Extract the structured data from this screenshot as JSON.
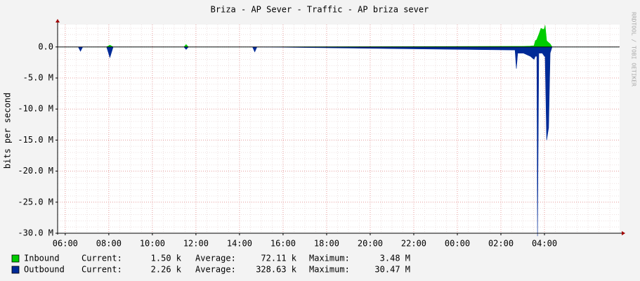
{
  "chart_data": {
    "type": "area",
    "title": "Briza - AP Sever - Traffic - AP briza sever",
    "y_label": "bits per second",
    "watermark": "RRDTOOL / TOBI OETIKER",
    "x": [
      5.7,
      6.6,
      6.7,
      6.8,
      7.9,
      8.05,
      8.2,
      11.45,
      11.55,
      11.65,
      14.6,
      14.7,
      14.8,
      26.65,
      26.71,
      26.77,
      27.03,
      27.35,
      27.52,
      27.58,
      27.65,
      27.68,
      27.74,
      27.84,
      27.9,
      27.94,
      28.0,
      28.03,
      28.1,
      28.19,
      28.26,
      28.35,
      31.4
    ],
    "series": [
      {
        "name": "Inbound",
        "color": "#00cc00",
        "values": [
          0,
          0,
          0,
          0,
          0,
          300000,
          0,
          0,
          400000,
          0,
          0,
          0,
          0,
          100000,
          100000,
          100000,
          100000,
          150000,
          200000,
          1000000,
          1200000,
          1500000,
          2000000,
          3000000,
          2900000,
          2800000,
          3000000,
          3480000,
          1000000,
          700000,
          500000,
          0,
          0
        ]
      },
      {
        "name": "Outbound",
        "color": "#002a97",
        "values": [
          0,
          0,
          -700000,
          0,
          0,
          -1700000,
          0,
          0,
          -400000,
          0,
          0,
          -800000,
          0,
          -500000,
          -3500000,
          -1000000,
          -1000000,
          -1500000,
          -2000000,
          -1500000,
          -1500000,
          -30470000,
          -1000000,
          -1000000,
          -1000000,
          -1200000,
          -1500000,
          -1500000,
          -15000000,
          -13000000,
          -1000000,
          0,
          0
        ]
      }
    ],
    "stat_labels": [
      "Current:",
      "Average:",
      "Maximum:"
    ],
    "stats": [
      [
        "1.50 k",
        "72.11 k",
        "3.48 M"
      ],
      [
        "2.26 k",
        "328.63 k",
        "30.47 M"
      ]
    ],
    "xlim": [
      5.65,
      31.45
    ],
    "xticks": [
      {
        "value": 6,
        "label": "06:00"
      },
      {
        "value": 8,
        "label": "08:00"
      },
      {
        "value": 10,
        "label": "10:00"
      },
      {
        "value": 12,
        "label": "12:00"
      },
      {
        "value": 14,
        "label": "14:00"
      },
      {
        "value": 16,
        "label": "16:00"
      },
      {
        "value": 18,
        "label": "18:00"
      },
      {
        "value": 20,
        "label": "20:00"
      },
      {
        "value": 22,
        "label": "22:00"
      },
      {
        "value": 24,
        "label": "00:00"
      },
      {
        "value": 26,
        "label": "02:00"
      },
      {
        "value": 28,
        "label": "04:00"
      }
    ],
    "ylim": [
      -30000000,
      3600000
    ],
    "yticks": [
      {
        "value": 0,
        "label": "0.0"
      },
      {
        "value": -5000000,
        "label": "-5.0 M"
      },
      {
        "value": -10000000,
        "label": "-10.0 M"
      },
      {
        "value": -15000000,
        "label": "-15.0 M"
      },
      {
        "value": -20000000,
        "label": "-20.0 M"
      },
      {
        "value": -25000000,
        "label": "-25.0 M"
      },
      {
        "value": -30000000,
        "label": "-30.0 M"
      }
    ],
    "grid": true
  }
}
